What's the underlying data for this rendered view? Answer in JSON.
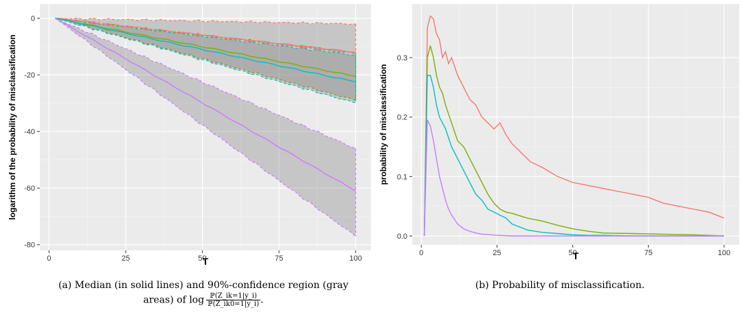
{
  "captions": {
    "a_text": "(a) Median (in solid lines) and 90%-confidence region (gray areas) of log",
    "a_frac_num": "ℙ(Z_ik=1|y_i)",
    "a_frac_den": "ℙ(Z_ik0=1|y_i)",
    "a_end": ".",
    "b_text": "(b) Probability of misclassification."
  },
  "chart_data": [
    {
      "id": "a",
      "type": "line",
      "xlabel": "T",
      "ylabel": "logarithm of the probability of misclassification",
      "xlim": [
        -3,
        105
      ],
      "ylim": [
        -82,
        5
      ],
      "xticks": [
        0,
        25,
        50,
        75,
        100
      ],
      "yticks": [
        0,
        -20,
        -40,
        -60,
        -80
      ],
      "xtick_labels": [
        "0",
        "25",
        "50",
        "75",
        "100"
      ],
      "ytick_labels": [
        "0",
        "-20",
        "-40",
        "-60",
        "-80"
      ],
      "grid": true,
      "series": [
        {
          "color": "#f8766d",
          "x": [
            2,
            100
          ],
          "median": [
            0,
            -12
          ],
          "lower": [
            0,
            -12.5
          ],
          "upper": [
            0,
            -2
          ]
        },
        {
          "color": "#7cae00",
          "x": [
            2,
            100
          ],
          "median": [
            0,
            -20.5
          ],
          "lower": [
            0,
            -29
          ],
          "upper": [
            0,
            -12
          ]
        },
        {
          "color": "#00bfc4",
          "x": [
            2,
            100
          ],
          "median": [
            0,
            -22.5
          ],
          "lower": [
            0,
            -30
          ],
          "upper": [
            0,
            -13
          ]
        },
        {
          "color": "#c77cff",
          "x": [
            2,
            100
          ],
          "median": [
            0,
            -61
          ],
          "lower": [
            0,
            -77
          ],
          "upper": [
            0,
            -46
          ]
        }
      ]
    },
    {
      "id": "b",
      "type": "line",
      "xlabel": "T",
      "ylabel": "probability of misclassification",
      "xlim": [
        -3,
        105
      ],
      "ylim": [
        -0.015,
        0.39
      ],
      "xticks": [
        0,
        25,
        50,
        75,
        100
      ],
      "yticks": [
        0,
        0.1,
        0.2,
        0.3
      ],
      "xtick_labels": [
        "0",
        "25",
        "50",
        "75",
        "100"
      ],
      "ytick_labels": [
        "0.0",
        "0.1",
        "0.2",
        "0.3"
      ],
      "grid": true,
      "series": [
        {
          "color": "#f8766d",
          "x": [
            1,
            2,
            3,
            4,
            5,
            6,
            7,
            8,
            9,
            10,
            12,
            14,
            16,
            18,
            20,
            22,
            24,
            26,
            28,
            30,
            33,
            36,
            40,
            45,
            50,
            55,
            60,
            65,
            70,
            75,
            80,
            85,
            90,
            95,
            100
          ],
          "y": [
            0.0,
            0.35,
            0.37,
            0.365,
            0.34,
            0.33,
            0.3,
            0.31,
            0.29,
            0.3,
            0.27,
            0.25,
            0.23,
            0.22,
            0.2,
            0.19,
            0.18,
            0.19,
            0.17,
            0.155,
            0.14,
            0.125,
            0.115,
            0.1,
            0.09,
            0.085,
            0.08,
            0.075,
            0.07,
            0.065,
            0.055,
            0.05,
            0.045,
            0.04,
            0.03
          ]
        },
        {
          "color": "#7cae00",
          "x": [
            1,
            2,
            3,
            4,
            5,
            6,
            7,
            8,
            10,
            12,
            14,
            16,
            18,
            20,
            22,
            24,
            26,
            28,
            30,
            35,
            40,
            45,
            50,
            55,
            60,
            70,
            80,
            90,
            100
          ],
          "y": [
            0.0,
            0.3,
            0.32,
            0.3,
            0.27,
            0.25,
            0.24,
            0.22,
            0.19,
            0.16,
            0.15,
            0.13,
            0.11,
            0.09,
            0.07,
            0.055,
            0.045,
            0.04,
            0.038,
            0.03,
            0.025,
            0.018,
            0.012,
            0.008,
            0.005,
            0.004,
            0.003,
            0.002,
            0.0
          ]
        },
        {
          "color": "#00bfc4",
          "x": [
            1,
            2,
            3,
            4,
            5,
            6,
            7,
            8,
            10,
            12,
            14,
            16,
            18,
            20,
            22,
            24,
            26,
            28,
            30,
            35,
            40,
            45,
            50,
            55,
            60,
            70,
            80,
            90,
            100
          ],
          "y": [
            0.0,
            0.27,
            0.27,
            0.25,
            0.22,
            0.2,
            0.19,
            0.18,
            0.15,
            0.13,
            0.11,
            0.09,
            0.07,
            0.06,
            0.045,
            0.04,
            0.035,
            0.03,
            0.02,
            0.01,
            0.006,
            0.004,
            0.002,
            0.001,
            0.001,
            0.0,
            0.0,
            0.0,
            0.0
          ]
        },
        {
          "color": "#c77cff",
          "x": [
            1,
            2,
            3,
            4,
            5,
            6,
            7,
            8,
            9,
            10,
            12,
            14,
            16,
            18,
            20,
            25,
            30,
            40,
            50,
            60,
            70,
            80,
            90,
            100
          ],
          "y": [
            0.0,
            0.195,
            0.185,
            0.16,
            0.13,
            0.1,
            0.08,
            0.06,
            0.045,
            0.035,
            0.02,
            0.012,
            0.008,
            0.005,
            0.003,
            0.001,
            0.0,
            0.0,
            0.0,
            0.0,
            0.0,
            0.0,
            0.0,
            0.0
          ]
        }
      ]
    }
  ]
}
